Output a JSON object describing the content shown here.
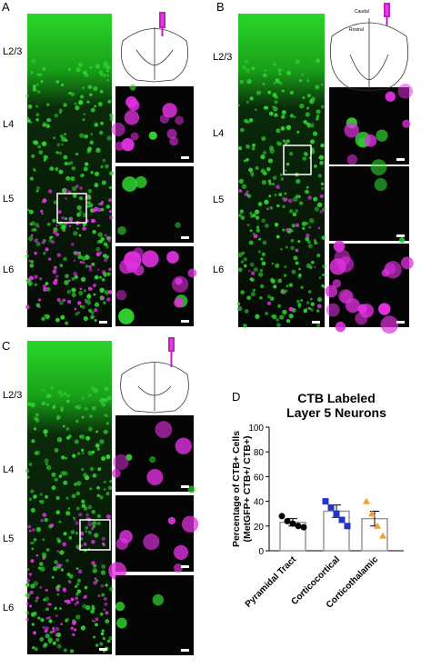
{
  "panels": [
    {
      "label": "A",
      "layers": [
        "L2/3",
        "L4",
        "L5",
        "L6"
      ]
    },
    {
      "label": "B",
      "layers": [
        "L2/3",
        "L4",
        "L5",
        "L6"
      ],
      "schematic_labels": [
        "Caudal",
        "Rostral"
      ]
    },
    {
      "label": "C",
      "layers": [
        "L2/3",
        "L4",
        "L5",
        "L6"
      ]
    },
    {
      "label": "D"
    }
  ],
  "chart_data": {
    "type": "bar",
    "title": [
      "CTB Labeled",
      "Layer 5 Neurons"
    ],
    "ylabel": [
      "Percentage of CTB+ Cells",
      "(MetGFP+ CTB+/ CTB+)"
    ],
    "categories": [
      "Pyramidal Tract",
      "Corticocortical",
      "Corticothalamic"
    ],
    "values": [
      23,
      32,
      26
    ],
    "errors": [
      3,
      5,
      6
    ],
    "points": [
      [
        28,
        24,
        22,
        20,
        19
      ],
      [
        40,
        35,
        30,
        25,
        20
      ],
      [
        40,
        30,
        20,
        12
      ]
    ],
    "point_colors": [
      "#000000",
      "#2433c8",
      "#f0a030"
    ],
    "point_shapes": [
      "circle",
      "square",
      "triangle"
    ],
    "bar_color": "#ffffff",
    "ylim": [
      0,
      100
    ],
    "yticks": [
      0,
      20,
      40,
      60,
      80,
      100
    ]
  }
}
